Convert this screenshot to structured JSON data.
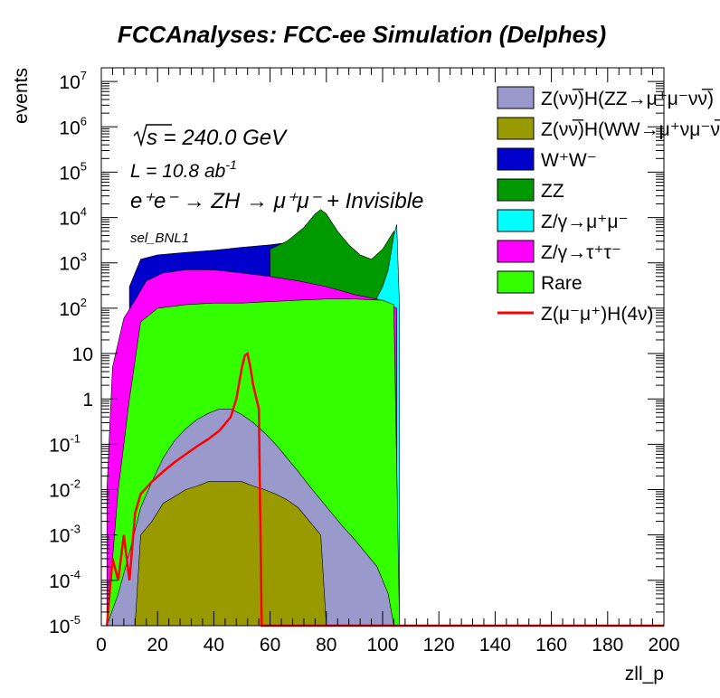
{
  "chart_data": {
    "type": "area",
    "title": "FCCAnalyses: FCC-ee Simulation (Delphes)",
    "xlabel": "zll_p",
    "ylabel": "events",
    "xlim": [
      0,
      200
    ],
    "ylim": [
      1e-05,
      20000000
    ],
    "yscale": "log",
    "stacked": true,
    "grid": false,
    "legend_position": "top-right",
    "x_ticks": [
      "0",
      "20",
      "40",
      "60",
      "80",
      "100",
      "120",
      "140",
      "160",
      "180",
      "200"
    ],
    "y_ticks": [
      {
        "base": "10",
        "exp": "-5",
        "value": 1e-05
      },
      {
        "base": "10",
        "exp": "-4",
        "value": 0.0001
      },
      {
        "base": "10",
        "exp": "-3",
        "value": 0.001
      },
      {
        "base": "10",
        "exp": "-2",
        "value": 0.01
      },
      {
        "base": "10",
        "exp": "-1",
        "value": 0.1
      },
      {
        "base": "1",
        "exp": "",
        "value": 1
      },
      {
        "base": "10",
        "exp": "",
        "value": 10
      },
      {
        "base": "10",
        "exp": "2",
        "value": 100
      },
      {
        "base": "10",
        "exp": "3",
        "value": 1000
      },
      {
        "base": "10",
        "exp": "4",
        "value": 10000
      },
      {
        "base": "10",
        "exp": "5",
        "value": 100000
      },
      {
        "base": "10",
        "exp": "6",
        "value": 1000000
      },
      {
        "base": "10",
        "exp": "7",
        "value": 10000000
      }
    ],
    "annotations": {
      "sqrt_s": "s = 240.0 GeV",
      "lumi": "L = 10.8 ab",
      "lumi_exp": "-1",
      "process": "e⁺e⁻ → ZH → μ⁺μ⁻ + Invisible",
      "selection": "sel_BNL1"
    },
    "series": [
      {
        "name": "Z(νν̅)H(ZZ→μ⁺μ⁻νν̅)",
        "color": "#9999cc",
        "points": [
          [
            2,
            1e-05
          ],
          [
            6,
            5e-05
          ],
          [
            10,
            0.0004
          ],
          [
            14,
            0.004
          ],
          [
            18,
            0.015
          ],
          [
            22,
            0.05
          ],
          [
            26,
            0.12
          ],
          [
            30,
            0.22
          ],
          [
            34,
            0.35
          ],
          [
            38,
            0.48
          ],
          [
            42,
            0.6
          ],
          [
            46,
            0.6
          ],
          [
            50,
            0.45
          ],
          [
            54,
            0.3
          ],
          [
            58,
            0.18
          ],
          [
            62,
            0.1
          ],
          [
            66,
            0.05
          ],
          [
            70,
            0.025
          ],
          [
            74,
            0.012
          ],
          [
            78,
            0.006
          ],
          [
            82,
            0.003
          ],
          [
            86,
            0.0015
          ],
          [
            90,
            0.0008
          ],
          [
            94,
            0.0004
          ],
          [
            98,
            0.0002
          ],
          [
            102,
            5e-05
          ],
          [
            104,
            1e-05
          ]
        ]
      },
      {
        "name": "Z(νν̅)H(WW→μ⁺νμ⁻ν̅)",
        "color": "#999900",
        "points": [
          [
            12,
            1e-05
          ],
          [
            14,
            0.001
          ],
          [
            18,
            0.002
          ],
          [
            22,
            0.005
          ],
          [
            26,
            0.007
          ],
          [
            30,
            0.01
          ],
          [
            34,
            0.012
          ],
          [
            38,
            0.015
          ],
          [
            42,
            0.015
          ],
          [
            46,
            0.015
          ],
          [
            50,
            0.015
          ],
          [
            54,
            0.012
          ],
          [
            58,
            0.01
          ],
          [
            62,
            0.008
          ],
          [
            66,
            0.006
          ],
          [
            70,
            0.004
          ],
          [
            74,
            0.002
          ],
          [
            78,
            0.001
          ],
          [
            80,
            1e-05
          ]
        ]
      },
      {
        "name": "W⁺W⁻",
        "color": "#0000cc",
        "points": [
          [
            10,
            300
          ],
          [
            14,
            1200
          ],
          [
            20,
            1500
          ],
          [
            30,
            1700
          ],
          [
            40,
            1900
          ],
          [
            50,
            2200
          ],
          [
            60,
            2500
          ],
          [
            70,
            3000
          ],
          [
            78,
            3000
          ],
          [
            82,
            2800
          ],
          [
            86,
            2000
          ],
          [
            90,
            1200
          ],
          [
            94,
            700
          ],
          [
            98,
            600
          ],
          [
            102,
            2000
          ],
          [
            104,
            4000
          ],
          [
            106,
            100
          ]
        ]
      },
      {
        "name": "ZZ",
        "color": "#009900",
        "points": [
          [
            60,
            2000
          ],
          [
            66,
            3000
          ],
          [
            72,
            6000
          ],
          [
            76,
            12000
          ],
          [
            78,
            15000
          ],
          [
            80,
            12000
          ],
          [
            84,
            5000
          ],
          [
            88,
            2500
          ],
          [
            92,
            1500
          ],
          [
            96,
            1200
          ],
          [
            100,
            2000
          ],
          [
            104,
            5000
          ]
        ]
      },
      {
        "name": "Z/γ→μ⁺μ⁻",
        "color": "#00ffff",
        "points": [
          [
            10,
            30
          ],
          [
            14,
            150
          ],
          [
            20,
            200
          ],
          [
            40,
            250
          ],
          [
            60,
            300
          ],
          [
            80,
            200
          ],
          [
            96,
            100
          ],
          [
            100,
            300
          ],
          [
            102,
            700
          ],
          [
            104,
            4000
          ],
          [
            105,
            7000
          ],
          [
            106,
            100
          ]
        ]
      },
      {
        "name": "Z/γ→τ⁺τ⁻",
        "color": "#ff00ff",
        "points": [
          [
            2,
            0.01
          ],
          [
            4,
            5
          ],
          [
            8,
            60
          ],
          [
            12,
            150
          ],
          [
            16,
            400
          ],
          [
            22,
            600
          ],
          [
            30,
            700
          ],
          [
            40,
            700
          ],
          [
            50,
            600
          ],
          [
            60,
            500
          ],
          [
            70,
            400
          ],
          [
            80,
            300
          ],
          [
            90,
            200
          ],
          [
            100,
            150
          ],
          [
            105,
            100
          ]
        ]
      },
      {
        "name": "Rare",
        "color": "#33ff00",
        "points": [
          [
            2,
            1e-05
          ],
          [
            6,
            0.01
          ],
          [
            10,
            1
          ],
          [
            14,
            50
          ],
          [
            20,
            100
          ],
          [
            30,
            120
          ],
          [
            40,
            130
          ],
          [
            50,
            130
          ],
          [
            60,
            140
          ],
          [
            70,
            150
          ],
          [
            80,
            160
          ],
          [
            90,
            160
          ],
          [
            100,
            150
          ],
          [
            104,
            120
          ],
          [
            106,
            1e-05
          ]
        ]
      },
      {
        "name": "Z(μ⁻μ⁺)H(4ν)",
        "color": "#ff0000",
        "style": "line",
        "points": [
          [
            2,
            1e-05
          ],
          [
            4,
            0.0003
          ],
          [
            6,
            0.0001
          ],
          [
            8,
            0.001
          ],
          [
            10,
            0.0001
          ],
          [
            12,
            0.003
          ],
          [
            14,
            0.008
          ],
          [
            18,
            0.015
          ],
          [
            22,
            0.025
          ],
          [
            26,
            0.04
          ],
          [
            30,
            0.06
          ],
          [
            34,
            0.09
          ],
          [
            38,
            0.13
          ],
          [
            42,
            0.2
          ],
          [
            46,
            0.4
          ],
          [
            48,
            1
          ],
          [
            50,
            5
          ],
          [
            51,
            9
          ],
          [
            52,
            10
          ],
          [
            53,
            5
          ],
          [
            54,
            2
          ],
          [
            56,
            0.6
          ],
          [
            57,
            1e-05
          ],
          [
            60,
            1e-05
          ],
          [
            200,
            1e-05
          ]
        ]
      }
    ]
  }
}
